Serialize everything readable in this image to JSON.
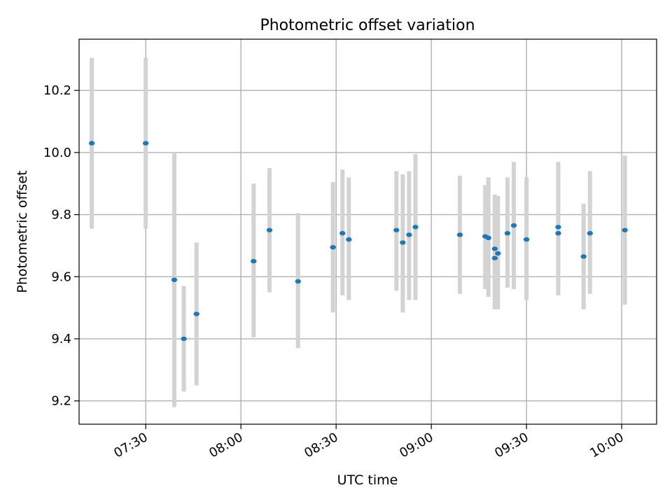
{
  "chart_data": {
    "type": "scatter",
    "title": "Photometric offset variation",
    "xlabel": "UTC time",
    "ylabel": "Photometric offset",
    "x_tick_labels": [
      "07:30",
      "08:00",
      "08:30",
      "09:00",
      "09:30",
      "10:00"
    ],
    "x_tick_values": [
      "07:30",
      "08:00",
      "08:30",
      "09:00",
      "09:30",
      "10:00"
    ],
    "y_tick_labels": [
      "9.2",
      "9.4",
      "9.6",
      "9.8",
      "10.0",
      "10.2"
    ],
    "y_tick_values": [
      9.2,
      9.4,
      9.6,
      9.8,
      10.0,
      10.2
    ],
    "xlim": [
      "07:09",
      "10:11"
    ],
    "ylim": [
      9.125,
      10.365
    ],
    "grid": true,
    "colors": {
      "marker": "#1f77b4",
      "errorbar": "#d3d3d3",
      "grid": "#b0b0b0",
      "axes": "#000000"
    },
    "series": [
      {
        "points": [
          {
            "x": "07:13",
            "y": 10.03,
            "ylow": 9.755,
            "yhigh": 10.305
          },
          {
            "x": "07:30",
            "y": 10.03,
            "ylow": 9.755,
            "yhigh": 10.305
          },
          {
            "x": "07:39",
            "y": 9.59,
            "ylow": 9.18,
            "yhigh": 10.0
          },
          {
            "x": "07:42",
            "y": 9.4,
            "ylow": 9.23,
            "yhigh": 9.57
          },
          {
            "x": "07:46",
            "y": 9.48,
            "ylow": 9.25,
            "yhigh": 9.71
          },
          {
            "x": "08:04",
            "y": 9.65,
            "ylow": 9.405,
            "yhigh": 9.9
          },
          {
            "x": "08:09",
            "y": 9.75,
            "ylow": 9.55,
            "yhigh": 9.95
          },
          {
            "x": "08:18",
            "y": 9.585,
            "ylow": 9.37,
            "yhigh": 9.805
          },
          {
            "x": "08:29",
            "y": 9.695,
            "ylow": 9.485,
            "yhigh": 9.905
          },
          {
            "x": "08:32",
            "y": 9.74,
            "ylow": 9.54,
            "yhigh": 9.945
          },
          {
            "x": "08:34",
            "y": 9.72,
            "ylow": 9.525,
            "yhigh": 9.92
          },
          {
            "x": "08:49",
            "y": 9.75,
            "ylow": 9.555,
            "yhigh": 9.94
          },
          {
            "x": "08:51",
            "y": 9.71,
            "ylow": 9.485,
            "yhigh": 9.93
          },
          {
            "x": "08:53",
            "y": 9.735,
            "ylow": 9.525,
            "yhigh": 9.94
          },
          {
            "x": "08:55",
            "y": 9.76,
            "ylow": 9.525,
            "yhigh": 9.995
          },
          {
            "x": "09:09",
            "y": 9.735,
            "ylow": 9.545,
            "yhigh": 9.925
          },
          {
            "x": "09:17",
            "y": 9.73,
            "ylow": 9.56,
            "yhigh": 9.895
          },
          {
            "x": "09:18",
            "y": 9.725,
            "ylow": 9.535,
            "yhigh": 9.92
          },
          {
            "x": "09:20",
            "y": 9.66,
            "ylow": 9.495,
            "yhigh": 9.825
          },
          {
            "x": "09:20",
            "y": 9.69,
            "ylow": 9.495,
            "yhigh": 9.865
          },
          {
            "x": "09:21",
            "y": 9.675,
            "ylow": 9.495,
            "yhigh": 9.86
          },
          {
            "x": "09:24",
            "y": 9.74,
            "ylow": 9.565,
            "yhigh": 9.92
          },
          {
            "x": "09:26",
            "y": 9.765,
            "ylow": 9.56,
            "yhigh": 9.97
          },
          {
            "x": "09:30",
            "y": 9.72,
            "ylow": 9.525,
            "yhigh": 9.92
          },
          {
            "x": "09:40",
            "y": 9.76,
            "ylow": 9.545,
            "yhigh": 9.97
          },
          {
            "x": "09:40",
            "y": 9.74,
            "ylow": 9.54,
            "yhigh": 9.935
          },
          {
            "x": "09:48",
            "y": 9.665,
            "ylow": 9.495,
            "yhigh": 9.835
          },
          {
            "x": "09:50",
            "y": 9.74,
            "ylow": 9.545,
            "yhigh": 9.94
          },
          {
            "x": "10:01",
            "y": 9.75,
            "ylow": 9.51,
            "yhigh": 9.99
          }
        ]
      }
    ]
  }
}
